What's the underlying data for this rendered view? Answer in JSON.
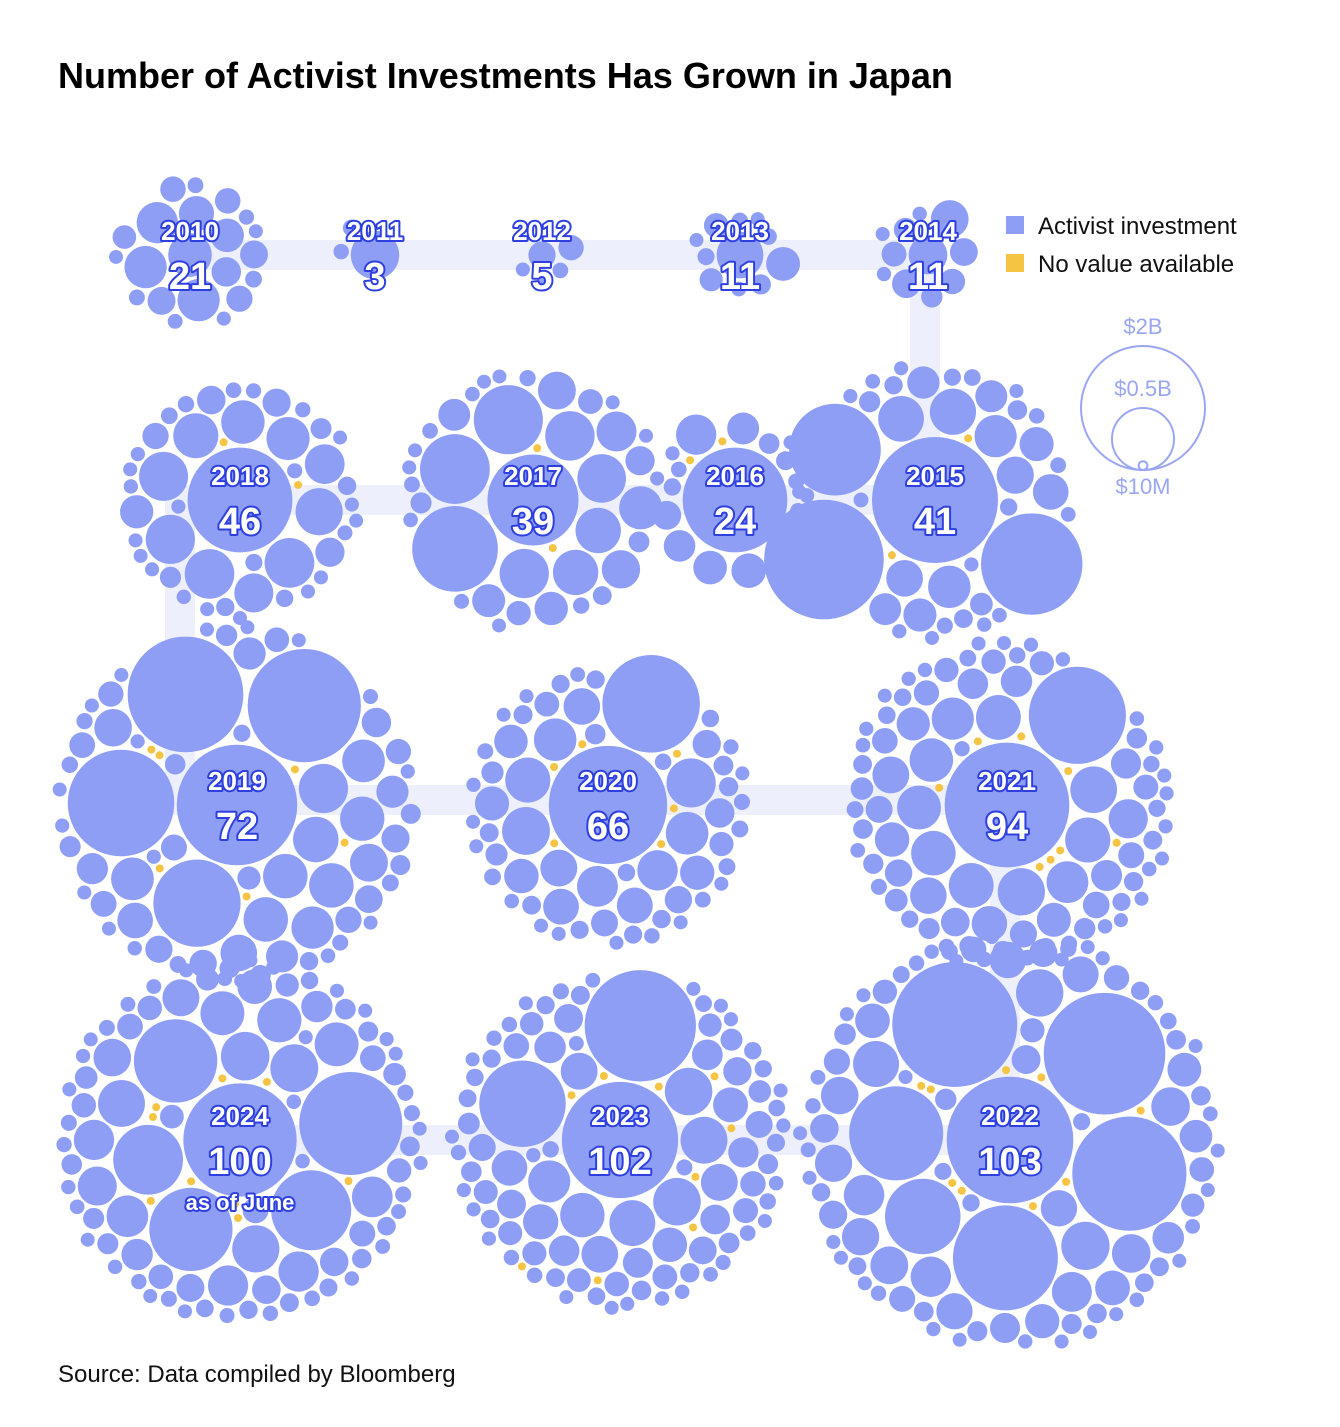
{
  "chart_data": {
    "type": "bubble-clusters",
    "title": "Number of Activist Investments Has Grown in Japan",
    "categories": [
      "2010",
      "2011",
      "2012",
      "2013",
      "2014",
      "2015",
      "2016",
      "2017",
      "2018",
      "2019",
      "2020",
      "2021",
      "2022",
      "2023",
      "2024"
    ],
    "values": [
      21,
      3,
      5,
      11,
      11,
      41,
      24,
      39,
      46,
      72,
      66,
      94,
      103,
      102,
      100
    ],
    "annotation": "as of June",
    "legend": [
      {
        "name": "Activist investment",
        "color": "#8f9ef5"
      },
      {
        "name": "No value available",
        "color": "#f6c443"
      }
    ],
    "size_legend": [
      {
        "value": 2000000000,
        "label": "$2B"
      },
      {
        "value": 500000000,
        "label": "$0.5B"
      },
      {
        "value": 10000000,
        "label": "$10M"
      }
    ],
    "source": "Source: Data compiled by Bloomberg"
  }
}
